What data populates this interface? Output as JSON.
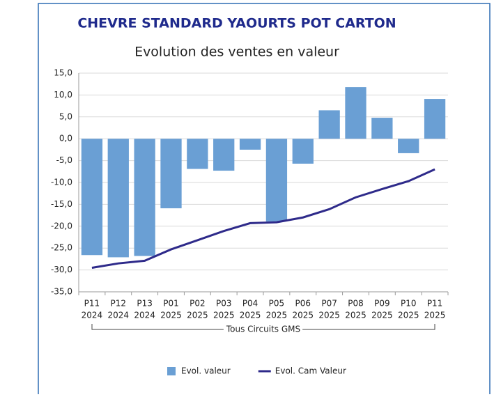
{
  "chart_data": {
    "type": "bar_line",
    "title": "CHEVRE STANDARD YAOURTS POT CARTON",
    "subtitle": "Evolution des ventes en valeur",
    "categories": [
      [
        "P11",
        "2024"
      ],
      [
        "P12",
        "2024"
      ],
      [
        "P13",
        "2024"
      ],
      [
        "P01",
        "2025"
      ],
      [
        "P02",
        "2025"
      ],
      [
        "P03",
        "2025"
      ],
      [
        "P04",
        "2025"
      ],
      [
        "P05",
        "2025"
      ],
      [
        "P06",
        "2025"
      ],
      [
        "P07",
        "2025"
      ],
      [
        "P08",
        "2025"
      ],
      [
        "P09",
        "2025"
      ],
      [
        "P10",
        "2025"
      ],
      [
        "P11",
        "2025"
      ]
    ],
    "group_label": "Tous Circuits GMS",
    "series": [
      {
        "name": "Evol.  valeur",
        "type": "bar",
        "color": "#6a9fd4",
        "values": [
          -26.6,
          -27.1,
          -26.8,
          -15.9,
          -6.9,
          -7.3,
          -2.5,
          -18.9,
          -5.7,
          6.5,
          11.8,
          4.8,
          -3.3,
          9.1
        ]
      },
      {
        "name": "Evol. Cam Valeur",
        "type": "line",
        "color": "#2e2a8a",
        "values": [
          -29.5,
          -28.5,
          -27.9,
          -25.3,
          -23.2,
          -21.1,
          -19.3,
          -19.1,
          -18.0,
          -16.1,
          -13.4,
          -11.5,
          -9.7,
          -7.0
        ]
      }
    ],
    "ylim": [
      -35,
      15
    ],
    "yticks": [
      {
        "value": -35,
        "label": "-35,0"
      },
      {
        "value": -30,
        "label": "-30,0"
      },
      {
        "value": -25,
        "label": "-25,0"
      },
      {
        "value": -20,
        "label": "-20,0"
      },
      {
        "value": -15,
        "label": "-15,0"
      },
      {
        "value": -10,
        "label": "-10,0"
      },
      {
        "value": -5,
        "label": "-5,0"
      },
      {
        "value": 0,
        "label": "0,0"
      },
      {
        "value": 5,
        "label": "5,0"
      },
      {
        "value": 10,
        "label": "10,0"
      },
      {
        "value": 15,
        "label": "15,0"
      }
    ],
    "grid": true,
    "legend": "bottom"
  }
}
